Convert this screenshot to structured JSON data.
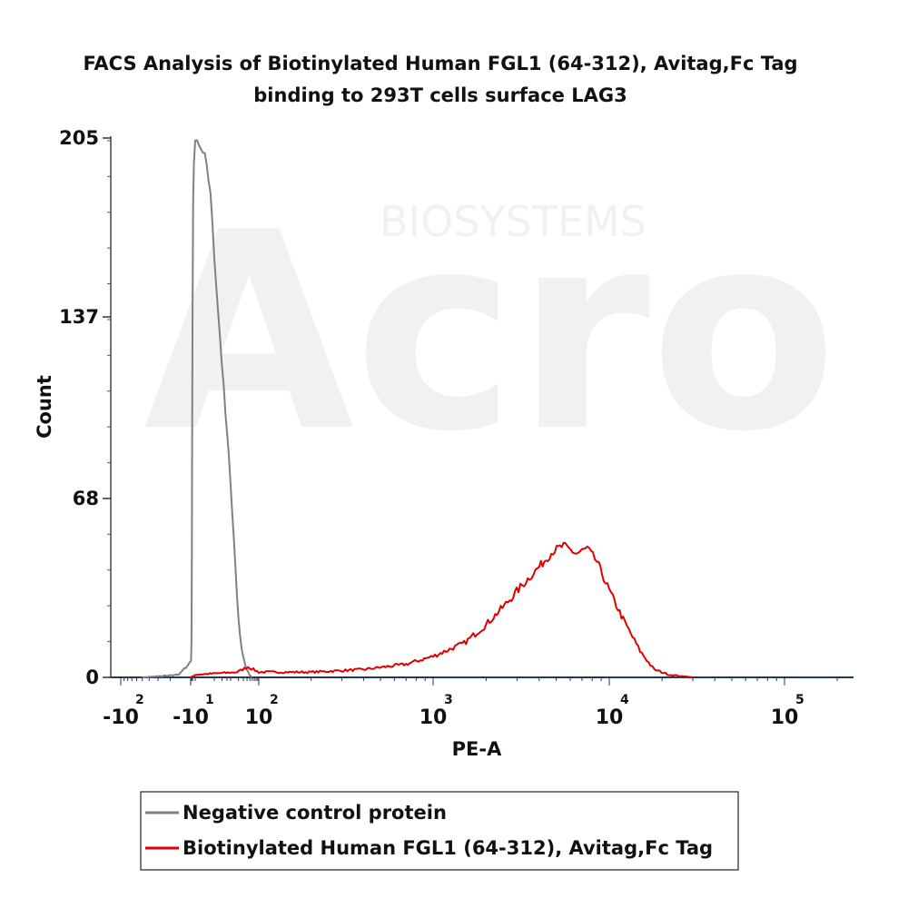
{
  "chart_data": {
    "type": "line",
    "title": [
      "FACS Analysis of Biotinylated Human FGL1 (64-312), Avitag,Fc Tag",
      "binding to 293T cells surface LAG3"
    ],
    "xlabel": "PE-A",
    "ylabel": "Count",
    "ylim": [
      0,
      205
    ],
    "y_ticks": [
      "205",
      "137",
      "68",
      "0"
    ],
    "y_tick_values": [
      205,
      137,
      68,
      0
    ],
    "x_scale": "biexponential",
    "x_ticks": [
      {
        "base": "-10",
        "exp": "2",
        "value": -100
      },
      {
        "base": "-10",
        "exp": "1",
        "value": -10
      },
      {
        "base": "10",
        "exp": "2",
        "value": 100
      },
      {
        "base": "10",
        "exp": "3",
        "value": 1000
      },
      {
        "base": "10",
        "exp": "4",
        "value": 10000
      },
      {
        "base": "10",
        "exp": "5",
        "value": 100000
      }
    ],
    "legend_position": "bottom",
    "watermark": "BIOSYSTEMS",
    "series": [
      {
        "name": "Negative control protein",
        "color": "#808080",
        "points": [
          [
            -50,
            0
          ],
          [
            -15,
            1
          ],
          [
            -8,
            6
          ],
          [
            -6,
            15
          ],
          [
            -5,
            45
          ],
          [
            -4,
            90
          ],
          [
            -3,
            140
          ],
          [
            -2,
            180
          ],
          [
            -1,
            197
          ],
          [
            0,
            204
          ],
          [
            1,
            198
          ],
          [
            2,
            185
          ],
          [
            3,
            160
          ],
          [
            5,
            130
          ],
          [
            8,
            100
          ],
          [
            12,
            75
          ],
          [
            16,
            50
          ],
          [
            20,
            30
          ],
          [
            25,
            15
          ],
          [
            32,
            8
          ],
          [
            40,
            3
          ],
          [
            50,
            1
          ],
          [
            60,
            0
          ]
        ]
      },
      {
        "name": "Biotinylated Human FGL1 (64-312), Avitag,Fc Tag",
        "color": "#e00000",
        "points": [
          [
            -10,
            0
          ],
          [
            0,
            1
          ],
          [
            20,
            2
          ],
          [
            45,
            4
          ],
          [
            100,
            2
          ],
          [
            200,
            2
          ],
          [
            400,
            3
          ],
          [
            700,
            5
          ],
          [
            1000,
            8
          ],
          [
            1500,
            13
          ],
          [
            2000,
            20
          ],
          [
            2600,
            28
          ],
          [
            3200,
            35
          ],
          [
            4000,
            42
          ],
          [
            4800,
            48
          ],
          [
            5500,
            50
          ],
          [
            6500,
            47
          ],
          [
            7500,
            49
          ],
          [
            8500,
            44
          ],
          [
            10000,
            33
          ],
          [
            12000,
            22
          ],
          [
            15000,
            10
          ],
          [
            18000,
            3
          ],
          [
            22000,
            1
          ],
          [
            30000,
            0
          ]
        ]
      }
    ]
  }
}
